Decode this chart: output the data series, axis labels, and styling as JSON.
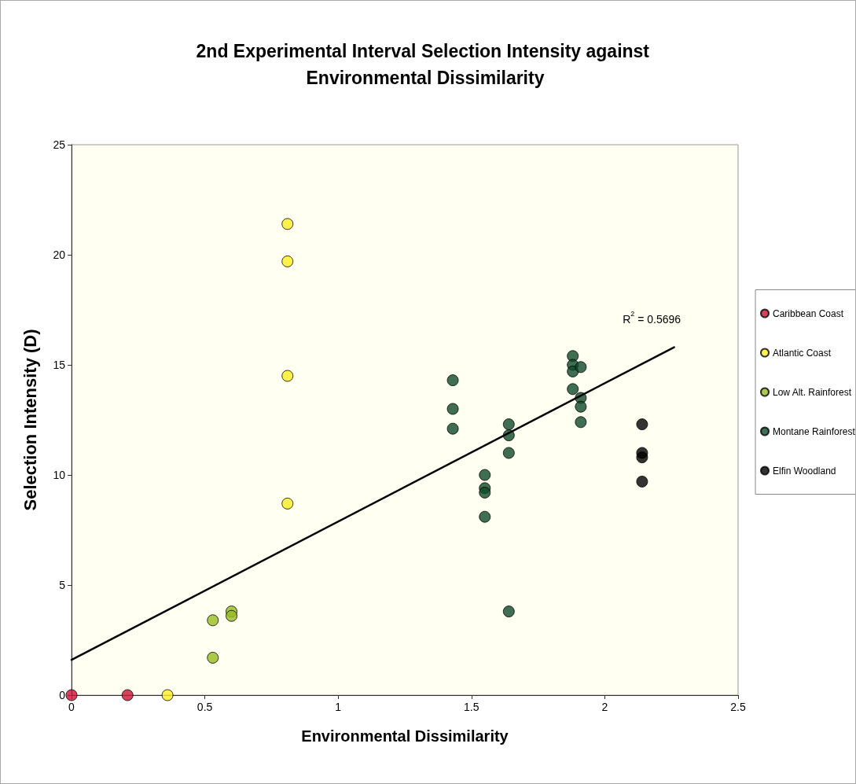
{
  "chart_data": {
    "type": "scatter",
    "title": "2nd Experimental Interval Selection Intensity against Environmental Dissimilarity",
    "xlabel": "Environmental Dissimilarity",
    "ylabel": "Selection Intensity (D)",
    "annotations": [
      "R$^{2}$ = 0.5696"
    ],
    "series": [
      {
        "name": "Caribbean Coast",
        "color": "#cc1133",
        "x": [
          0,
          0.21
        ],
        "values": [
          0,
          0
        ]
      },
      {
        "name": "Atlantic Coast",
        "color": "#ffee22",
        "x": [
          0.36,
          0.81,
          0.81,
          0.81,
          0.81
        ],
        "values": [
          0,
          21.4,
          19.7,
          14.5,
          8.7
        ]
      },
      {
        "name": "Low Alt. Rainforest",
        "color": "#99bb22",
        "x": [
          0.53,
          0.53,
          0.6,
          0.6
        ],
        "values": [
          3.4,
          1.7,
          3.8,
          3.6
        ]
      },
      {
        "name": "Montane Rainforest",
        "color": "#0f4a2a",
        "x": [
          1.43,
          1.43,
          1.43,
          1.55,
          1.55,
          1.55,
          1.55,
          1.64,
          1.64,
          1.64,
          1.64,
          1.88,
          1.88,
          1.88,
          1.88,
          1.91,
          1.91,
          1.91,
          1.91
        ],
        "values": [
          14.3,
          13,
          12.1,
          10,
          9.4,
          9.2,
          8.1,
          12.3,
          11.8,
          11,
          3.8,
          15.4,
          15,
          14.7,
          13.9,
          14.9,
          13.5,
          13.1,
          12.4
        ]
      },
      {
        "name": "Elfin Woodland",
        "color": "#000000",
        "x": [
          2.14,
          2.14,
          2.14,
          2.14
        ],
        "values": [
          12.3,
          11,
          10.8,
          9.7
        ]
      },
      {
        "type": "line",
        "color": "#000000",
        "x": [
          0,
          2.26
        ],
        "values": [
          1.6,
          15.8
        ],
        "marker": "none"
      }
    ],
    "xlim": [
      0,
      2.5
    ],
    "xticks": [
      0,
      0.5,
      1,
      1.5,
      2,
      2.5
    ],
    "ylim": [
      0,
      25
    ],
    "yticks": [
      0,
      5,
      10,
      15,
      20,
      25
    ],
    "grid": false,
    "legend": "right",
    "marker": "circle"
  }
}
